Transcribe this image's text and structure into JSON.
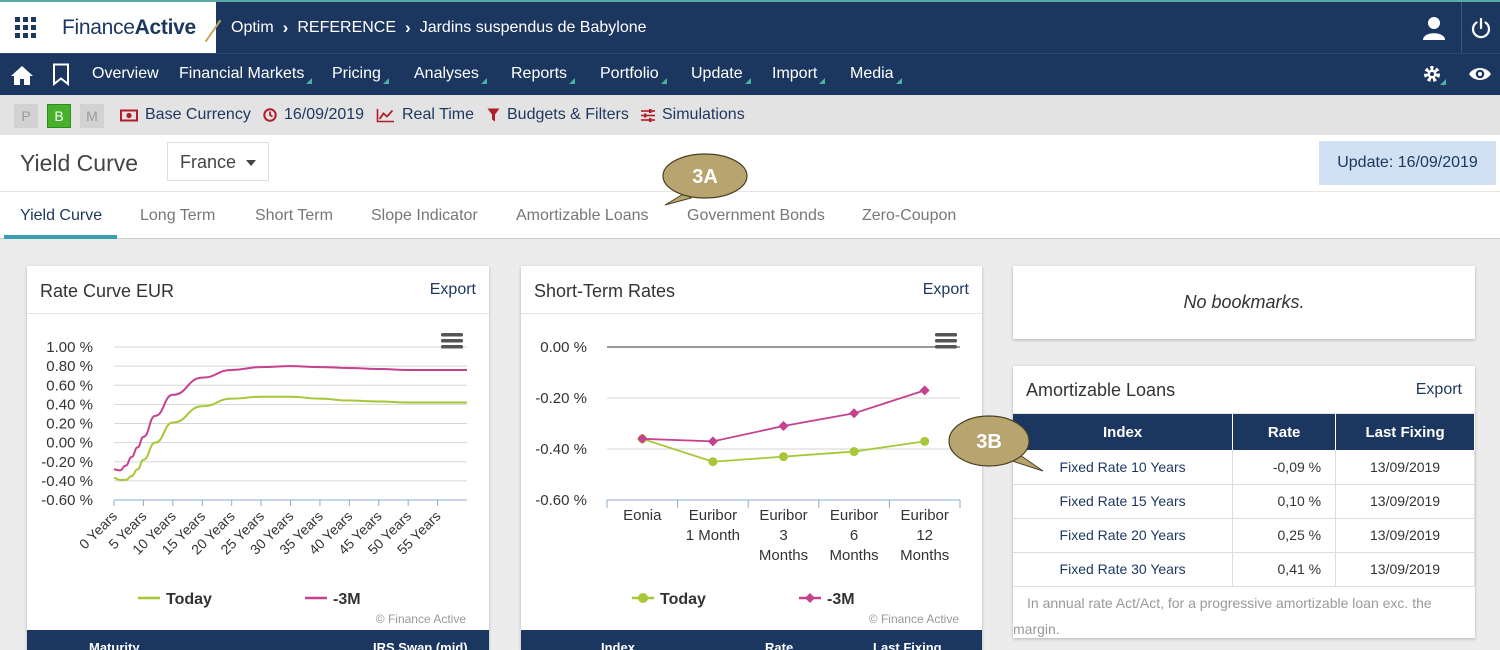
{
  "header": {
    "logo_regular": "Finance",
    "logo_bold": "Active",
    "breadcrumbs": [
      "Optim",
      "REFERENCE",
      "Jardins suspendus de Babylone"
    ]
  },
  "nav": {
    "items": [
      "Overview",
      "Financial Markets",
      "Pricing",
      "Analyses",
      "Reports",
      "Portfolio",
      "Update",
      "Import",
      "Media"
    ]
  },
  "filters": {
    "modes": [
      "P",
      "B",
      "M"
    ],
    "active_mode": "B",
    "base_currency": "Base Currency",
    "date": "16/09/2019",
    "real_time": "Real Time",
    "budgets": "Budgets & Filters",
    "simulations": "Simulations"
  },
  "page": {
    "title": "Yield Curve",
    "country": "France",
    "update_label": "Update: 16/09/2019"
  },
  "tabs": [
    "Yield Curve",
    "Long Term",
    "Short Term",
    "Slope Indicator",
    "Amortizable Loans",
    "Government Bonds",
    "Zero-Coupon"
  ],
  "annotations": {
    "a": "3A",
    "b": "3B"
  },
  "rate_curve": {
    "title": "Rate Curve EUR",
    "export": "Export",
    "credit": "© Finance Active",
    "footer_cols": [
      "Maturity",
      "IRS Swap (mid)"
    ]
  },
  "short_term": {
    "title": "Short-Term Rates",
    "export": "Export",
    "credit": "© Finance Active",
    "footer_cols": [
      "Index",
      "Rate",
      "Last Fixing"
    ]
  },
  "bookmarks": {
    "text": "No bookmarks."
  },
  "amortizable": {
    "title": "Amortizable Loans",
    "export": "Export",
    "columns": [
      "Index",
      "Rate",
      "Last Fixing"
    ],
    "rows": [
      [
        "Fixed Rate 10 Years",
        "-0,09 %",
        "13/09/2019"
      ],
      [
        "Fixed Rate 15 Years",
        "0,10 %",
        "13/09/2019"
      ],
      [
        "Fixed Rate 20 Years",
        "0,25 %",
        "13/09/2019"
      ],
      [
        "Fixed Rate 30 Years",
        "0,41 %",
        "13/09/2019"
      ]
    ],
    "note": "In annual rate Act/Act, for a progressive amortizable loan exc. the margin."
  },
  "colors": {
    "today": "#a6c736",
    "minus3m": "#c6418f",
    "navy": "#1c375f",
    "accent": "#4bb2a6"
  },
  "chart_data": [
    {
      "type": "line",
      "title": "Rate Curve EUR",
      "y_tick_labels": [
        "1.00 %",
        "0.80 %",
        "0.60 %",
        "0.40 %",
        "0.20 %",
        "0.00 %",
        "-0.20 %",
        "-0.40 %",
        "-0.60 %"
      ],
      "ylim": [
        -0.6,
        1.0
      ],
      "categories": [
        "0 Years",
        "5 Years",
        "10 Years",
        "15 Years",
        "20 Years",
        "25 Years",
        "30 Years",
        "35 Years",
        "40 Years",
        "45 Years",
        "50 Years",
        "55 Years"
      ],
      "xlim": [
        0,
        60
      ],
      "legend": "bottom",
      "series": [
        {
          "name": "Today",
          "x": [
            0,
            1,
            2,
            3,
            4,
            5,
            7,
            10,
            15,
            20,
            25,
            30,
            35,
            40,
            45,
            50,
            55,
            60
          ],
          "values": [
            -0.37,
            -0.39,
            -0.39,
            -0.35,
            -0.28,
            -0.18,
            0.0,
            0.21,
            0.38,
            0.46,
            0.48,
            0.48,
            0.46,
            0.44,
            0.43,
            0.42,
            0.42,
            0.42
          ]
        },
        {
          "name": "-3M",
          "x": [
            0,
            1,
            2,
            3,
            4,
            5,
            7,
            10,
            15,
            20,
            25,
            30,
            35,
            40,
            45,
            50,
            55,
            60
          ],
          "values": [
            -0.28,
            -0.29,
            -0.24,
            -0.15,
            -0.05,
            0.06,
            0.28,
            0.5,
            0.68,
            0.76,
            0.79,
            0.8,
            0.79,
            0.78,
            0.77,
            0.76,
            0.76,
            0.76
          ]
        }
      ]
    },
    {
      "type": "line",
      "title": "Short-Term Rates",
      "y_tick_labels": [
        "0.00 %",
        "-0.20 %",
        "-0.40 %",
        "-0.60 %"
      ],
      "ylim": [
        -0.6,
        0.0
      ],
      "categories": [
        [
          "Eonia"
        ],
        [
          "Euribor",
          "1 Month"
        ],
        [
          "Euribor",
          "3",
          "Months"
        ],
        [
          "Euribor",
          "6",
          "Months"
        ],
        [
          "Euribor",
          "12",
          "Months"
        ]
      ],
      "legend": "bottom",
      "series": [
        {
          "name": "Today",
          "values": [
            -0.36,
            -0.45,
            -0.43,
            -0.41,
            -0.37
          ]
        },
        {
          "name": "-3M",
          "values": [
            -0.36,
            -0.37,
            -0.31,
            -0.26,
            -0.17
          ]
        }
      ]
    }
  ]
}
